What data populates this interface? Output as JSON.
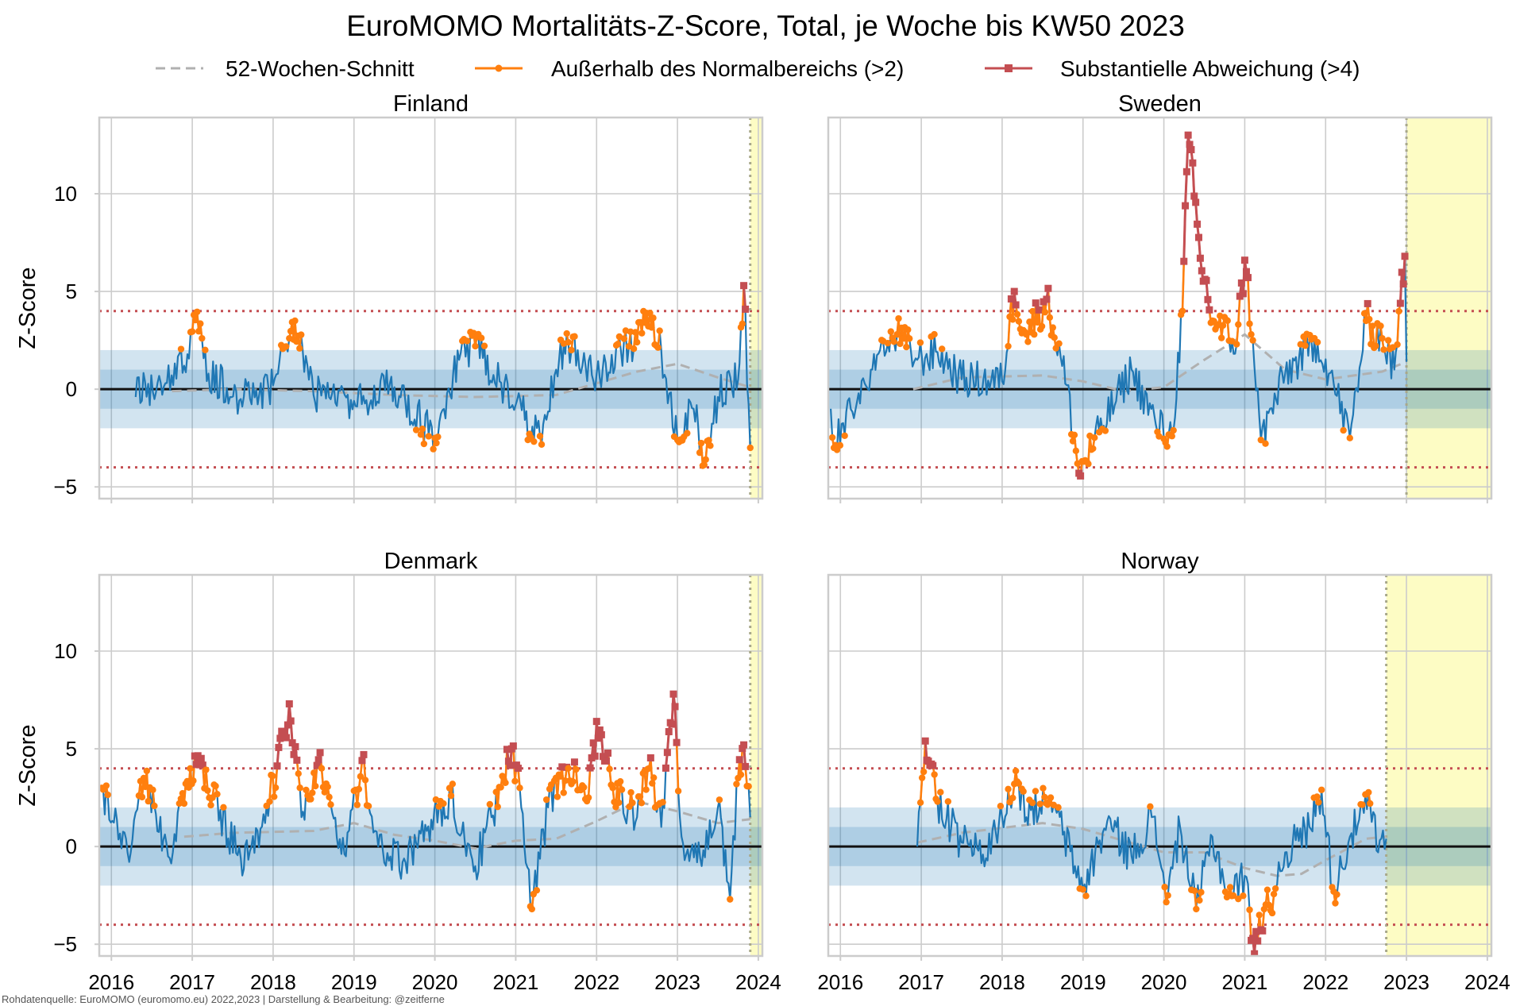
{
  "title": "EuroMOMO Mortalitäts-Z-Score, Total, je Woche bis KW50 2023",
  "source": "Rohdatenquelle: EuroMOMO (euromomo.eu) 2022,2023 | Darstellung & Bearbeitung: @zeitferne",
  "legend": [
    {
      "label": "52-Wochen-Schnitt",
      "style": "dashed",
      "color": "#b0b0b0"
    },
    {
      "label": "Außerhalb des Normalbereichs (>2)",
      "style": "line-dot",
      "color": "#ff7f0e"
    },
    {
      "label": "Substantielle Abweichung (>4)",
      "style": "line-square",
      "color": "#c44e52"
    }
  ],
  "ylabel": "Z-Score",
  "x_ticks": [
    "2016",
    "2017",
    "2018",
    "2019",
    "2020",
    "2021",
    "2022",
    "2023",
    "2024"
  ],
  "y_ticks": [
    "−5",
    "0",
    "5",
    "10"
  ],
  "colors": {
    "series": "#1f77b4",
    "band_inner": "#a9c5e2",
    "band_outer": "#d4e2f1",
    "threshold": "#c44e52",
    "forecast": "#fdfcc4",
    "grid": "#cccccc"
  },
  "chart_data": {
    "type": "line",
    "xlim": [
      2015.85,
      2024.05
    ],
    "ylim": [
      -5.6,
      13.9
    ],
    "bands": {
      "inner": [
        -1,
        1
      ],
      "outer": [
        -2,
        2
      ]
    },
    "thresholds": [
      4,
      -4
    ],
    "panels": [
      {
        "name": "Finland",
        "forecast_start": 2023.9,
        "mean_52w": [
          [
            2016.75,
            -0.1
          ],
          [
            2017.5,
            0.0
          ],
          [
            2018.5,
            -0.1
          ],
          [
            2019.5,
            -0.3
          ],
          [
            2020.5,
            -0.4
          ],
          [
            2021.5,
            -0.3
          ],
          [
            2022.5,
            0.9
          ],
          [
            2023.0,
            1.3
          ],
          [
            2023.5,
            0.6
          ],
          [
            2023.9,
            0.1
          ]
        ],
        "keypoints": [
          [
            2016.3,
            -0.4
          ],
          [
            2016.9,
            1.2
          ],
          [
            2017.02,
            3.8
          ],
          [
            2017.2,
            0.8
          ],
          [
            2017.6,
            -0.5
          ],
          [
            2018.0,
            0.2
          ],
          [
            2018.2,
            2.6
          ],
          [
            2018.27,
            3.5
          ],
          [
            2018.5,
            -0.3
          ],
          [
            2019.0,
            -0.6
          ],
          [
            2019.5,
            0.1
          ],
          [
            2020.0,
            -2.5
          ],
          [
            2020.3,
            1.5
          ],
          [
            2020.5,
            2.2
          ],
          [
            2020.8,
            0.4
          ],
          [
            2021.0,
            -0.8
          ],
          [
            2021.3,
            -2.4
          ],
          [
            2021.5,
            1.0
          ],
          [
            2021.65,
            2.4
          ],
          [
            2022.0,
            0.8
          ],
          [
            2022.3,
            2.0
          ],
          [
            2022.5,
            2.4
          ],
          [
            2022.6,
            3.4
          ],
          [
            2022.8,
            2.0
          ],
          [
            2023.0,
            -2.6
          ],
          [
            2023.2,
            -1.0
          ],
          [
            2023.35,
            -3.6
          ],
          [
            2023.5,
            -0.4
          ],
          [
            2023.75,
            0.5
          ],
          [
            2023.82,
            5.3
          ],
          [
            2023.9,
            -3.0
          ]
        ]
      },
      {
        "name": "Sweden",
        "forecast_start": 2023.0,
        "mean_52w": [
          [
            2016.9,
            0.0
          ],
          [
            2017.5,
            0.6
          ],
          [
            2018.5,
            0.7
          ],
          [
            2019.0,
            0.4
          ],
          [
            2019.5,
            -0.1
          ],
          [
            2020.0,
            0.1
          ],
          [
            2020.5,
            1.5
          ],
          [
            2021.0,
            2.8
          ],
          [
            2021.5,
            1.0
          ],
          [
            2022.0,
            0.5
          ],
          [
            2022.7,
            0.9
          ],
          [
            2023.0,
            1.4
          ]
        ],
        "keypoints": [
          [
            2015.88,
            -1.0
          ],
          [
            2015.92,
            -3.0
          ],
          [
            2016.3,
            0.3
          ],
          [
            2016.7,
            2.8
          ],
          [
            2016.95,
            1.5
          ],
          [
            2017.2,
            1.9
          ],
          [
            2017.5,
            0.5
          ],
          [
            2018.0,
            0.4
          ],
          [
            2018.15,
            5.0
          ],
          [
            2018.3,
            2.8
          ],
          [
            2018.55,
            4.6
          ],
          [
            2018.8,
            0.2
          ],
          [
            2018.95,
            -4.3
          ],
          [
            2019.2,
            -2.2
          ],
          [
            2019.6,
            1.0
          ],
          [
            2019.9,
            -1.8
          ],
          [
            2020.1,
            -2.4
          ],
          [
            2020.23,
            4.0
          ],
          [
            2020.3,
            13.0
          ],
          [
            2020.45,
            6.7
          ],
          [
            2020.6,
            3.5
          ],
          [
            2020.9,
            2.3
          ],
          [
            2021.0,
            6.6
          ],
          [
            2021.1,
            2.5
          ],
          [
            2021.2,
            -2.6
          ],
          [
            2021.5,
            0.8
          ],
          [
            2021.9,
            2.4
          ],
          [
            2022.1,
            0.3
          ],
          [
            2022.3,
            -2.5
          ],
          [
            2022.5,
            3.5
          ],
          [
            2022.7,
            2.6
          ],
          [
            2022.85,
            1.0
          ],
          [
            2022.98,
            6.8
          ],
          [
            2023.0,
            1.4
          ]
        ]
      },
      {
        "name": "Denmark",
        "forecast_start": 2023.9,
        "mean_52w": [
          [
            2016.9,
            0.5
          ],
          [
            2017.5,
            0.7
          ],
          [
            2018.5,
            0.8
          ],
          [
            2019.0,
            1.2
          ],
          [
            2019.5,
            0.6
          ],
          [
            2020.0,
            0.3
          ],
          [
            2020.5,
            -0.1
          ],
          [
            2021.0,
            0.3
          ],
          [
            2021.5,
            0.4
          ],
          [
            2022.0,
            1.3
          ],
          [
            2022.5,
            2.3
          ],
          [
            2023.0,
            1.8
          ],
          [
            2023.5,
            1.2
          ],
          [
            2023.9,
            1.4
          ]
        ],
        "keypoints": [
          [
            2015.88,
            3.0
          ],
          [
            2016.2,
            -0.3
          ],
          [
            2016.4,
            3.5
          ],
          [
            2016.7,
            -0.5
          ],
          [
            2016.9,
            2.2
          ],
          [
            2017.05,
            4.2
          ],
          [
            2017.25,
            2.5
          ],
          [
            2017.6,
            -0.6
          ],
          [
            2017.9,
            1.2
          ],
          [
            2018.2,
            7.3
          ],
          [
            2018.35,
            1.5
          ],
          [
            2018.6,
            4.0
          ],
          [
            2018.9,
            -0.5
          ],
          [
            2019.1,
            4.4
          ],
          [
            2019.3,
            0.0
          ],
          [
            2019.6,
            -0.8
          ],
          [
            2019.9,
            0.8
          ],
          [
            2020.2,
            2.6
          ],
          [
            2020.5,
            -1.0
          ],
          [
            2020.7,
            1.5
          ],
          [
            2020.95,
            5.0
          ],
          [
            2021.05,
            3.0
          ],
          [
            2021.2,
            -3.2
          ],
          [
            2021.4,
            2.0
          ],
          [
            2021.65,
            4.0
          ],
          [
            2021.9,
            2.5
          ],
          [
            2022.0,
            6.4
          ],
          [
            2022.2,
            3.0
          ],
          [
            2022.5,
            1.5
          ],
          [
            2022.65,
            4.0
          ],
          [
            2022.8,
            1.0
          ],
          [
            2022.95,
            7.8
          ],
          [
            2023.05,
            0.5
          ],
          [
            2023.3,
            -1.0
          ],
          [
            2023.5,
            2.0
          ],
          [
            2023.65,
            -2.7
          ],
          [
            2023.75,
            3.5
          ],
          [
            2023.82,
            5.2
          ],
          [
            2023.9,
            1.5
          ]
        ]
      },
      {
        "name": "Norway",
        "forecast_start": 2022.75,
        "mean_52w": [
          [
            2016.95,
            0.2
          ],
          [
            2017.5,
            0.7
          ],
          [
            2018.5,
            1.2
          ],
          [
            2019.0,
            0.9
          ],
          [
            2019.5,
            0.3
          ],
          [
            2020.0,
            -0.3
          ],
          [
            2020.5,
            -0.3
          ],
          [
            2021.0,
            -1.1
          ],
          [
            2021.4,
            -1.5
          ],
          [
            2021.7,
            -1.4
          ],
          [
            2022.0,
            -0.7
          ],
          [
            2022.5,
            0.4
          ],
          [
            2022.75,
            0.5
          ]
        ],
        "keypoints": [
          [
            2016.95,
            0.0
          ],
          [
            2017.05,
            5.4
          ],
          [
            2017.2,
            2.3
          ],
          [
            2017.5,
            0.2
          ],
          [
            2017.8,
            -0.6
          ],
          [
            2018.0,
            1.5
          ],
          [
            2018.15,
            3.2
          ],
          [
            2018.3,
            1.5
          ],
          [
            2018.6,
            2.5
          ],
          [
            2018.9,
            -1.0
          ],
          [
            2019.0,
            -2.2
          ],
          [
            2019.3,
            1.3
          ],
          [
            2019.6,
            -0.5
          ],
          [
            2019.85,
            1.5
          ],
          [
            2020.05,
            -2.5
          ],
          [
            2020.2,
            1.0
          ],
          [
            2020.4,
            -3.2
          ],
          [
            2020.6,
            0.5
          ],
          [
            2020.8,
            -2.5
          ],
          [
            2021.0,
            -1.5
          ],
          [
            2021.1,
            -4.7
          ],
          [
            2021.3,
            -3.0
          ],
          [
            2021.5,
            -0.3
          ],
          [
            2021.8,
            1.0
          ],
          [
            2021.95,
            2.9
          ],
          [
            2022.1,
            -2.3
          ],
          [
            2022.3,
            0.5
          ],
          [
            2022.55,
            2.2
          ],
          [
            2022.65,
            -0.3
          ],
          [
            2022.75,
            0.4
          ]
        ]
      }
    ]
  }
}
